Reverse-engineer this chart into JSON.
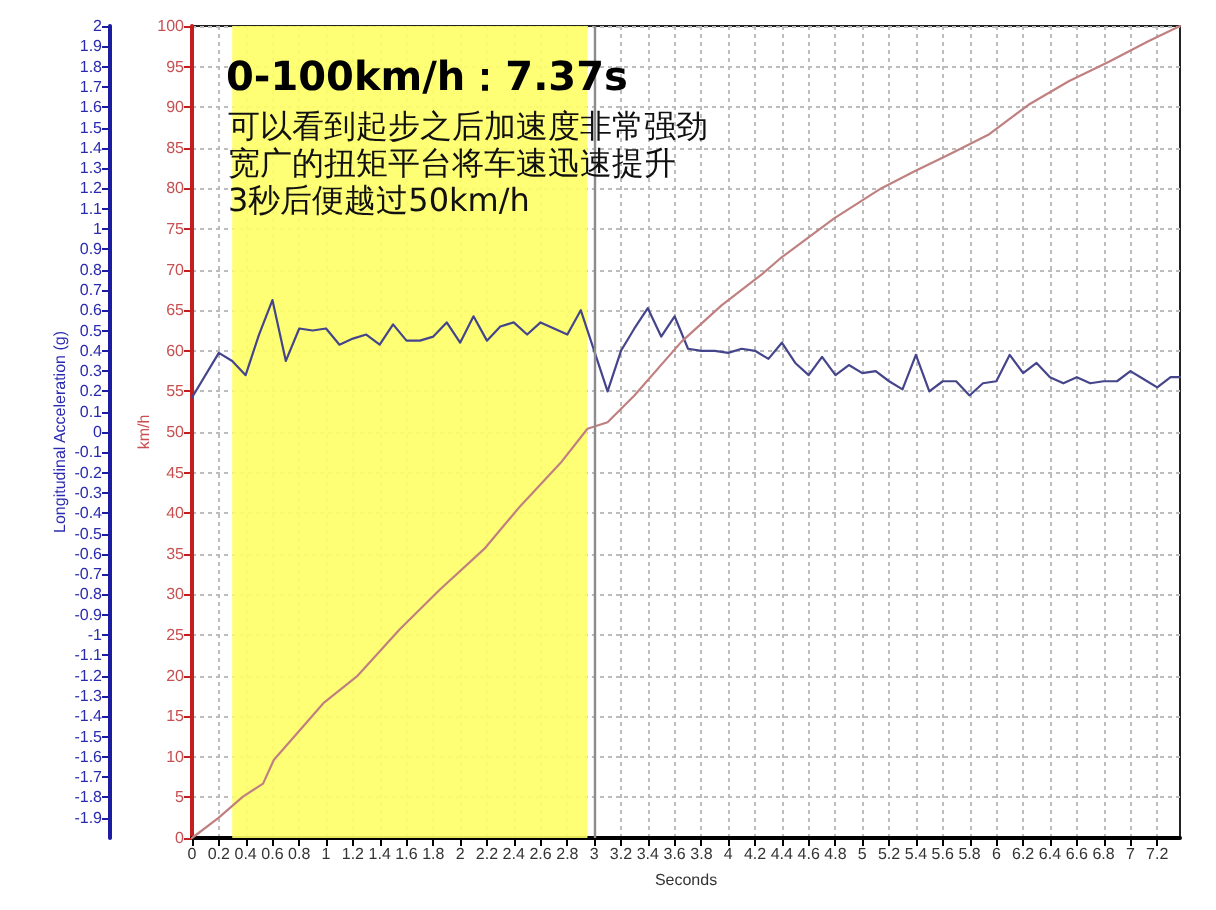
{
  "chart_data": {
    "type": "line",
    "title": "0-100km/h：7.37s",
    "annotations": [
      "可以看到起步之后加速度非常强劲",
      "宽广的扭矩平台将车速迅速提升",
      "3秒后便越过50km/h"
    ],
    "xlabel": "Seconds",
    "ylabel": "Longitudinal Acceleration (g)",
    "y2label": "km/h",
    "series": [
      {
        "color": "#45458c",
        "x": [
          0,
          0.2,
          0.3,
          0.4,
          0.5,
          0.6,
          0.7,
          0.8,
          0.9,
          1.0,
          1.1,
          1.2,
          1.3,
          1.4,
          1.5,
          1.6,
          1.7,
          1.8,
          1.9,
          2.0,
          2.1,
          2.2,
          2.3,
          2.4,
          2.5,
          2.6,
          2.7,
          2.8,
          2.9,
          3.1,
          3.2,
          3.3,
          3.4,
          3.5,
          3.6,
          3.7,
          3.8,
          3.9,
          4.0,
          4.1,
          4.2,
          4.3,
          4.4,
          4.5,
          4.6,
          4.7,
          4.8,
          4.9,
          5.0,
          5.1,
          5.2,
          5.3,
          5.4,
          5.5,
          5.6,
          5.7,
          5.8,
          5.9,
          6.0,
          6.1,
          6.2,
          6.3,
          6.4,
          6.5,
          6.6,
          6.7,
          6.8,
          6.9,
          7.0,
          7.1,
          7.2,
          7.3,
          7.37
        ],
        "values": [
          0.17,
          0.39,
          0.35,
          0.28,
          0.48,
          0.65,
          0.35,
          0.51,
          0.5,
          0.51,
          0.43,
          0.46,
          0.48,
          0.43,
          0.53,
          0.45,
          0.45,
          0.47,
          0.54,
          0.44,
          0.57,
          0.45,
          0.52,
          0.54,
          0.48,
          0.54,
          0.51,
          0.48,
          0.6,
          0.2,
          0.4,
          0.51,
          0.61,
          0.47,
          0.57,
          0.41,
          0.4,
          0.4,
          0.39,
          0.41,
          0.4,
          0.36,
          0.44,
          0.34,
          0.28,
          0.37,
          0.28,
          0.33,
          0.29,
          0.3,
          0.25,
          0.21,
          0.38,
          0.2,
          0.25,
          0.25,
          0.18,
          0.24,
          0.25,
          0.38,
          0.29,
          0.34,
          0.27,
          0.24,
          0.27,
          0.24,
          0.25,
          0.25,
          0.3,
          0.26,
          0.22,
          0.27,
          0.27
        ]
      },
      {
        "color": "#c08080",
        "axis": "y2",
        "x": [
          0,
          0.2,
          0.38,
          0.53,
          0.61,
          0.98,
          1.23,
          1.55,
          1.85,
          2.18,
          2.45,
          2.75,
          2.95,
          3.1,
          3.3,
          3.65,
          3.95,
          4.25,
          4.39,
          4.79,
          5.14,
          5.39,
          5.64,
          5.94,
          6.24,
          6.54,
          6.84,
          7.13,
          7.37
        ],
        "values": [
          0,
          2.5,
          5.1,
          6.7,
          9.6,
          16.6,
          19.9,
          25.7,
          30.6,
          35.6,
          40.9,
          46.2,
          50.4,
          51.2,
          54.5,
          61.1,
          65.6,
          69.4,
          71.4,
          76.3,
          80,
          82.1,
          84.1,
          86.6,
          90.3,
          93.2,
          95.6,
          98.1,
          100
        ]
      }
    ],
    "xlim": [
      0,
      7.37
    ],
    "xticks": [
      0,
      0.2,
      0.4,
      0.6,
      0.8,
      1,
      1.2,
      1.4,
      1.6,
      1.8,
      2,
      2.2,
      2.4,
      2.6,
      2.8,
      3,
      3.2,
      3.4,
      3.6,
      3.8,
      4,
      4.2,
      4.4,
      4.6,
      4.8,
      5,
      5.2,
      5.4,
      5.6,
      5.8,
      6,
      6.2,
      6.4,
      6.6,
      6.8,
      7,
      7.2
    ],
    "ylim": [
      -2,
      2
    ],
    "yticks": [
      -1.9,
      -1.8,
      -1.7,
      -1.6,
      -1.5,
      -1.4,
      -1.3,
      -1.2,
      -1.1,
      -1,
      -0.9,
      -0.8,
      -0.7,
      -0.6,
      -0.5,
      -0.4,
      -0.3,
      -0.2,
      -0.1,
      0,
      0.1,
      0.2,
      0.3,
      0.4,
      0.5,
      0.6,
      0.7,
      0.8,
      0.9,
      1,
      1.1,
      1.2,
      1.3,
      1.4,
      1.5,
      1.6,
      1.7,
      1.8,
      1.9,
      2
    ],
    "y2lim": [
      0,
      100
    ],
    "y2ticks": [
      0,
      5,
      10,
      15,
      20,
      25,
      30,
      35,
      40,
      45,
      50,
      55,
      60,
      65,
      70,
      75,
      80,
      85,
      90,
      95,
      100
    ],
    "bands": [
      {
        "axis": "x",
        "from": 0.3,
        "to": 2.95,
        "color": "#ffff66"
      }
    ],
    "ref_lines": [
      {
        "axis": "x",
        "value": 3,
        "color": "#8c8c8c",
        "line_style": "solid"
      }
    ],
    "grid": true,
    "marker": "none"
  }
}
